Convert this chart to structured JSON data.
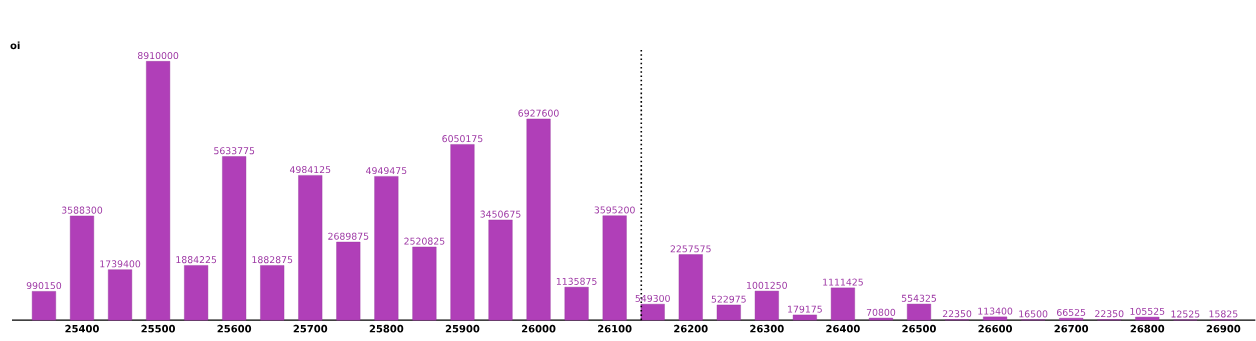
{
  "chart_data": {
    "type": "bar",
    "ylabel": "oi",
    "x": [
      25350,
      25400,
      25450,
      25500,
      25550,
      25600,
      25650,
      25700,
      25750,
      25800,
      25850,
      25900,
      25950,
      26000,
      26050,
      26100,
      26150,
      26200,
      26250,
      26300,
      26350,
      26400,
      26450,
      26500,
      26550,
      26600,
      26650,
      26700,
      26750,
      26800,
      26850,
      26900
    ],
    "values": [
      990150,
      3588300,
      1739400,
      8910000,
      1884225,
      5633775,
      1882875,
      4984125,
      2689875,
      4949475,
      2520825,
      6050175,
      3450675,
      6927600,
      1135875,
      3595200,
      549300,
      2257575,
      522975,
      1001250,
      179175,
      1111425,
      70800,
      554325,
      22350,
      113400,
      16500,
      66525,
      22350,
      105525,
      12525,
      15825
    ],
    "color": "#b03fb8",
    "xlim": [
      25308,
      26942
    ],
    "ylim": [
      0,
      9360000
    ],
    "xticks": [
      25400,
      25500,
      25600,
      25700,
      25800,
      25900,
      26000,
      26100,
      26200,
      26300,
      26400,
      26500,
      26600,
      26700,
      26800,
      26900
    ],
    "data_labels": true,
    "ref_lines": [
      {
        "axis": "x",
        "value": 26135,
        "color": "#000000",
        "line_style": "dotted"
      }
    ]
  }
}
